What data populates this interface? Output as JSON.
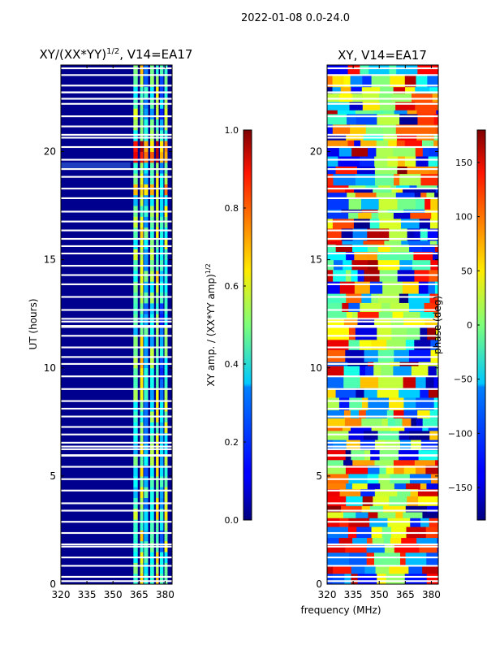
{
  "figure": {
    "suptitle": "2022-01-08 0.0-24.0",
    "xlabel": "frequency (MHz)"
  },
  "chart_data": [
    {
      "type": "heatmap",
      "title_main": "XY/(XX*YY)",
      "title_exp": "1/2",
      "title_rest": ", V14=EA17",
      "xlim": [
        320,
        384
      ],
      "ylim": [
        0,
        24
      ],
      "xticks": [
        320,
        335,
        350,
        365,
        380
      ],
      "yticks": [
        0,
        5,
        10,
        15,
        20
      ],
      "ylabel": "UT (hours)",
      "colorbar": {
        "label_main": "XY amp. / (XX*YY amp)",
        "label_exp": "1/2",
        "range": [
          0.0,
          1.0
        ],
        "ticks": [
          "0.0",
          "0.2",
          "0.4",
          "0.6",
          "0.8",
          "1.0"
        ]
      }
    },
    {
      "type": "heatmap",
      "title": "XY, V14=EA17",
      "xlim": [
        320,
        384
      ],
      "ylim": [
        0,
        24
      ],
      "xticks": [
        320,
        335,
        350,
        365,
        380
      ],
      "yticks": [
        0,
        5,
        10,
        15,
        20
      ],
      "colorbar": {
        "label": "phase (deg)",
        "range": [
          -180,
          180
        ],
        "ticks": [
          "150",
          "100",
          "50",
          "0",
          "−50",
          "−100",
          "−150"
        ],
        "tick_values": [
          150,
          100,
          50,
          0,
          -50,
          -100,
          -150
        ]
      }
    }
  ]
}
